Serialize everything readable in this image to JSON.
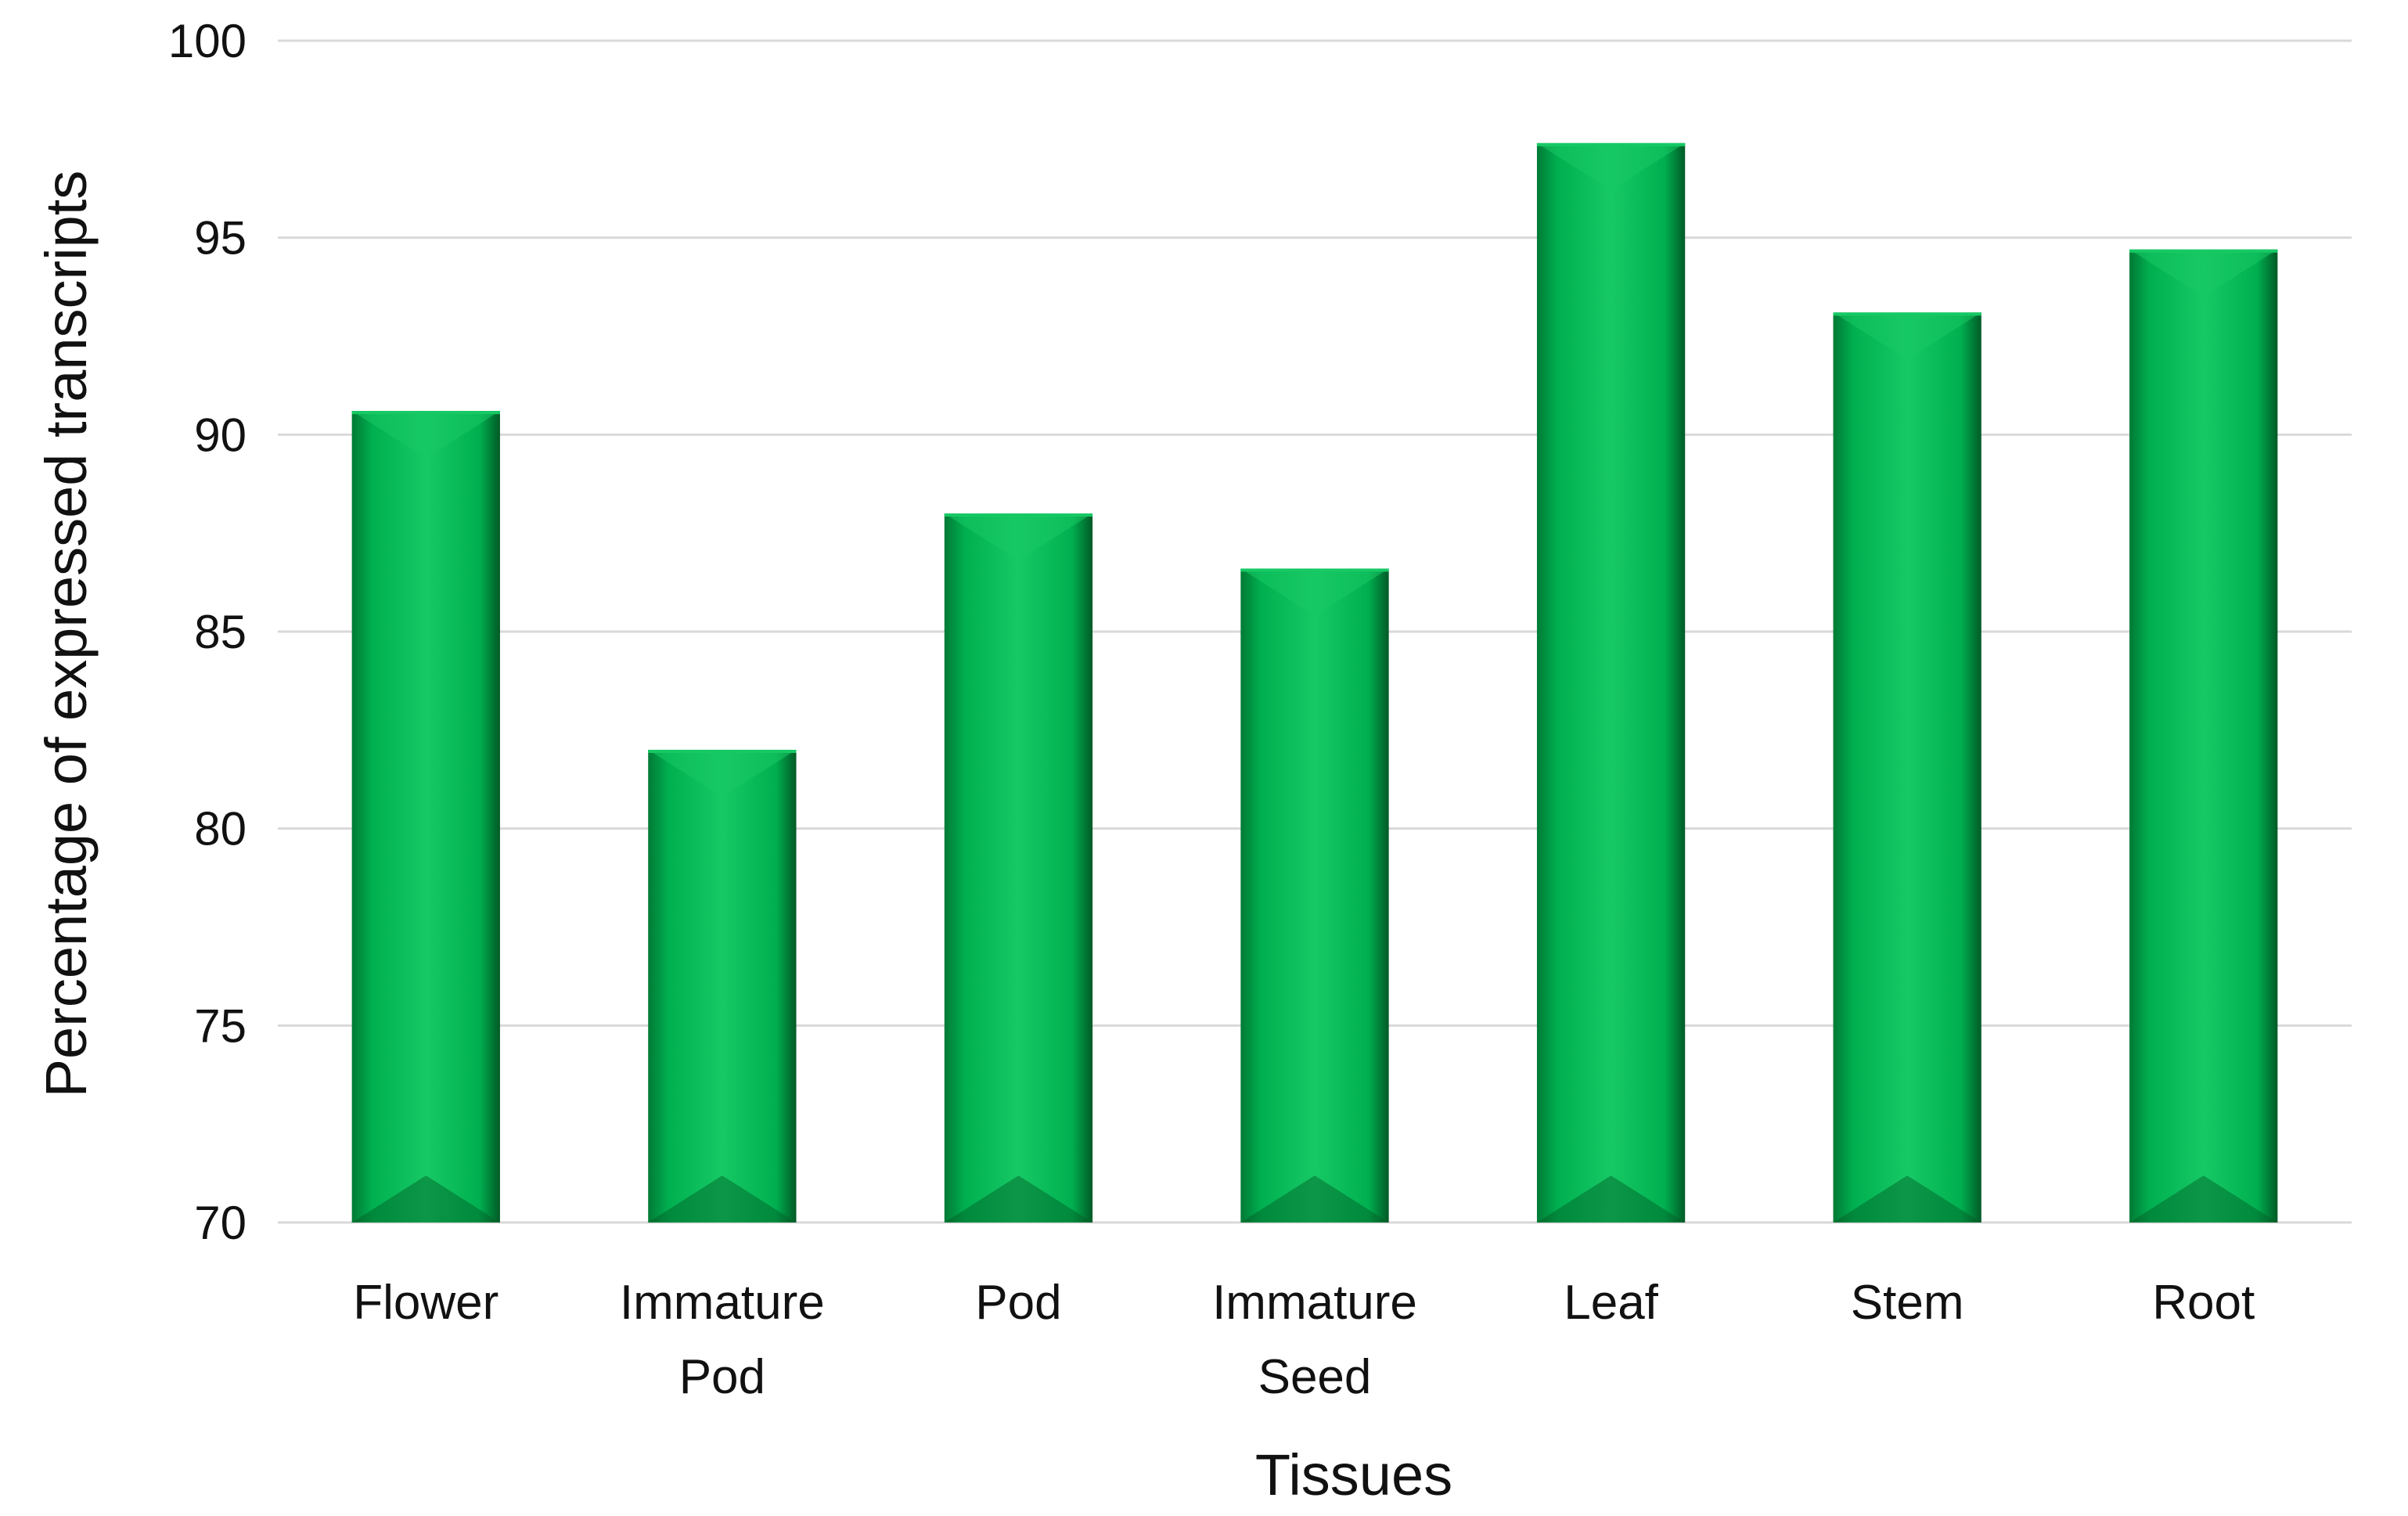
{
  "chart_data": {
    "type": "bar",
    "title": "",
    "xlabel": "Tissues",
    "ylabel": "Percentage of expressed transcripts",
    "categories": [
      [
        "Flower"
      ],
      [
        "Immature",
        "Pod"
      ],
      [
        "Pod"
      ],
      [
        "Immature",
        "Seed"
      ],
      [
        "Leaf"
      ],
      [
        "Stem"
      ],
      [
        "Root"
      ]
    ],
    "values": [
      90.6,
      82.0,
      88.0,
      86.6,
      97.4,
      93.1,
      94.7
    ],
    "ylim": [
      70,
      100
    ],
    "yticks": [
      70,
      75,
      80,
      85,
      90,
      95,
      100
    ],
    "grid": true,
    "legend": "none",
    "colors": {
      "bar": "#00b050",
      "bar_highlight": "#17c965",
      "bar_shadow": "#007a35",
      "bar_dark": "#005a26",
      "grid": "#d9d9d9"
    }
  }
}
